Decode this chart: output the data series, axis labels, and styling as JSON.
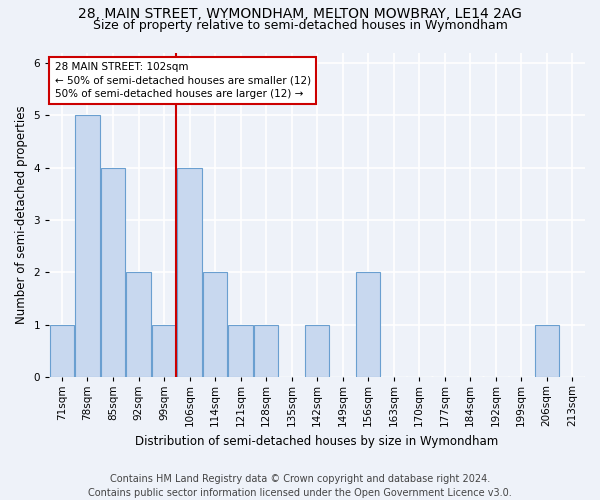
{
  "title_line1": "28, MAIN STREET, WYMONDHAM, MELTON MOWBRAY, LE14 2AG",
  "title_line2": "Size of property relative to semi-detached houses in Wymondham",
  "xlabel": "Distribution of semi-detached houses by size in Wymondham",
  "ylabel": "Number of semi-detached properties",
  "footer": "Contains HM Land Registry data © Crown copyright and database right 2024.\nContains public sector information licensed under the Open Government Licence v3.0.",
  "bins": [
    "71sqm",
    "78sqm",
    "85sqm",
    "92sqm",
    "99sqm",
    "106sqm",
    "114sqm",
    "121sqm",
    "128sqm",
    "135sqm",
    "142sqm",
    "149sqm",
    "156sqm",
    "163sqm",
    "170sqm",
    "177sqm",
    "184sqm",
    "192sqm",
    "199sqm",
    "206sqm",
    "213sqm"
  ],
  "values": [
    1,
    5,
    4,
    2,
    1,
    4,
    2,
    1,
    1,
    0,
    1,
    0,
    2,
    0,
    0,
    0,
    0,
    0,
    0,
    1,
    0
  ],
  "bar_color": "#c8d8ef",
  "bar_edge_color": "#6a9fd0",
  "annotation_text_line1": "28 MAIN STREET: 102sqm",
  "annotation_text_line2": "← 50% of semi-detached houses are smaller (12)",
  "annotation_text_line3": "50% of semi-detached houses are larger (12) →",
  "vline_color": "#cc0000",
  "vline_x": 4.475,
  "annotation_box_color": "#ffffff",
  "annotation_box_edge": "#cc0000",
  "ylim": [
    0,
    6.2
  ],
  "yticks": [
    0,
    1,
    2,
    3,
    4,
    5,
    6
  ],
  "background_color": "#eef2f9",
  "grid_color": "#ffffff",
  "title_fontsize": 10,
  "subtitle_fontsize": 9,
  "tick_fontsize": 7.5,
  "axis_label_fontsize": 8.5,
  "annotation_fontsize": 7.5,
  "footer_fontsize": 7
}
